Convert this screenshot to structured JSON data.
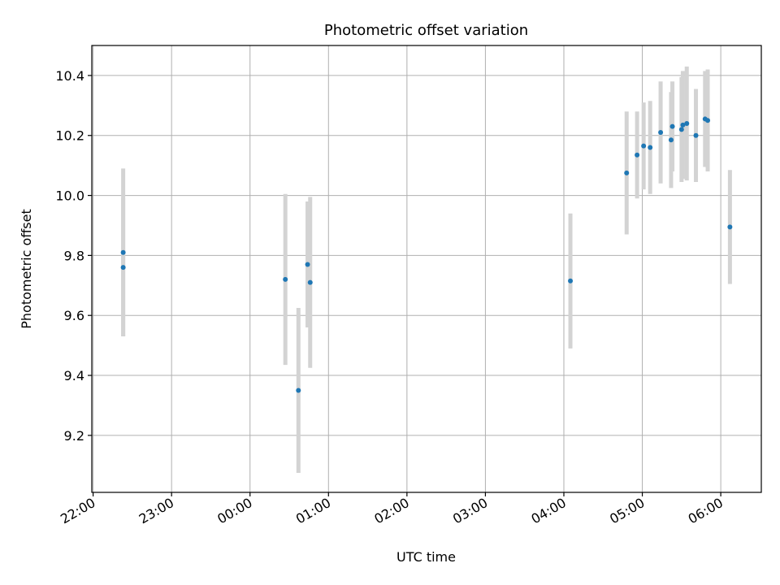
{
  "chart_data": {
    "type": "scatter",
    "title": "Photometric offset variation",
    "xlabel": "UTC time",
    "ylabel": "Photometric offset",
    "x_tick_labels": [
      "22:00",
      "23:00",
      "00:00",
      "01:00",
      "02:00",
      "03:00",
      "04:00",
      "05:00",
      "06:00"
    ],
    "y_tick_labels": [
      "9.2",
      "9.4",
      "9.6",
      "9.8",
      "10.0",
      "10.2",
      "10.4"
    ],
    "y_ticks": [
      9.2,
      9.4,
      9.6,
      9.8,
      10.0,
      10.2,
      10.4
    ],
    "xlim": [
      "21:59",
      "06:31"
    ],
    "ylim": [
      9.01,
      10.5
    ],
    "grid": true,
    "point_color": "#1f77b4",
    "errorbar_color": "#d3d3d3",
    "points": [
      {
        "x": "22:23",
        "y": 9.76,
        "err": 0.23
      },
      {
        "x": "22:23",
        "y": 9.81,
        "err": 0.28
      },
      {
        "x": "00:27",
        "y": 9.72,
        "err": 0.285
      },
      {
        "x": "00:37",
        "y": 9.35,
        "err": 0.275
      },
      {
        "x": "00:44",
        "y": 9.77,
        "err": 0.21
      },
      {
        "x": "00:46",
        "y": 9.71,
        "err": 0.285
      },
      {
        "x": "04:05",
        "y": 9.715,
        "err": 0.225
      },
      {
        "x": "04:48",
        "y": 10.075,
        "err": 0.205
      },
      {
        "x": "04:56",
        "y": 10.135,
        "err": 0.145
      },
      {
        "x": "05:01",
        "y": 10.165,
        "err": 0.145
      },
      {
        "x": "05:06",
        "y": 10.16,
        "err": 0.155
      },
      {
        "x": "05:14",
        "y": 10.21,
        "err": 0.17
      },
      {
        "x": "05:22",
        "y": 10.185,
        "err": 0.16
      },
      {
        "x": "05:23",
        "y": 10.23,
        "err": 0.15
      },
      {
        "x": "05:30",
        "y": 10.22,
        "err": 0.175
      },
      {
        "x": "05:31",
        "y": 10.235,
        "err": 0.18
      },
      {
        "x": "05:34",
        "y": 10.24,
        "err": 0.19
      },
      {
        "x": "05:41",
        "y": 10.2,
        "err": 0.155
      },
      {
        "x": "05:48",
        "y": 10.255,
        "err": 0.16
      },
      {
        "x": "05:50",
        "y": 10.25,
        "err": 0.17
      },
      {
        "x": "06:07",
        "y": 9.895,
        "err": 0.19
      }
    ]
  }
}
